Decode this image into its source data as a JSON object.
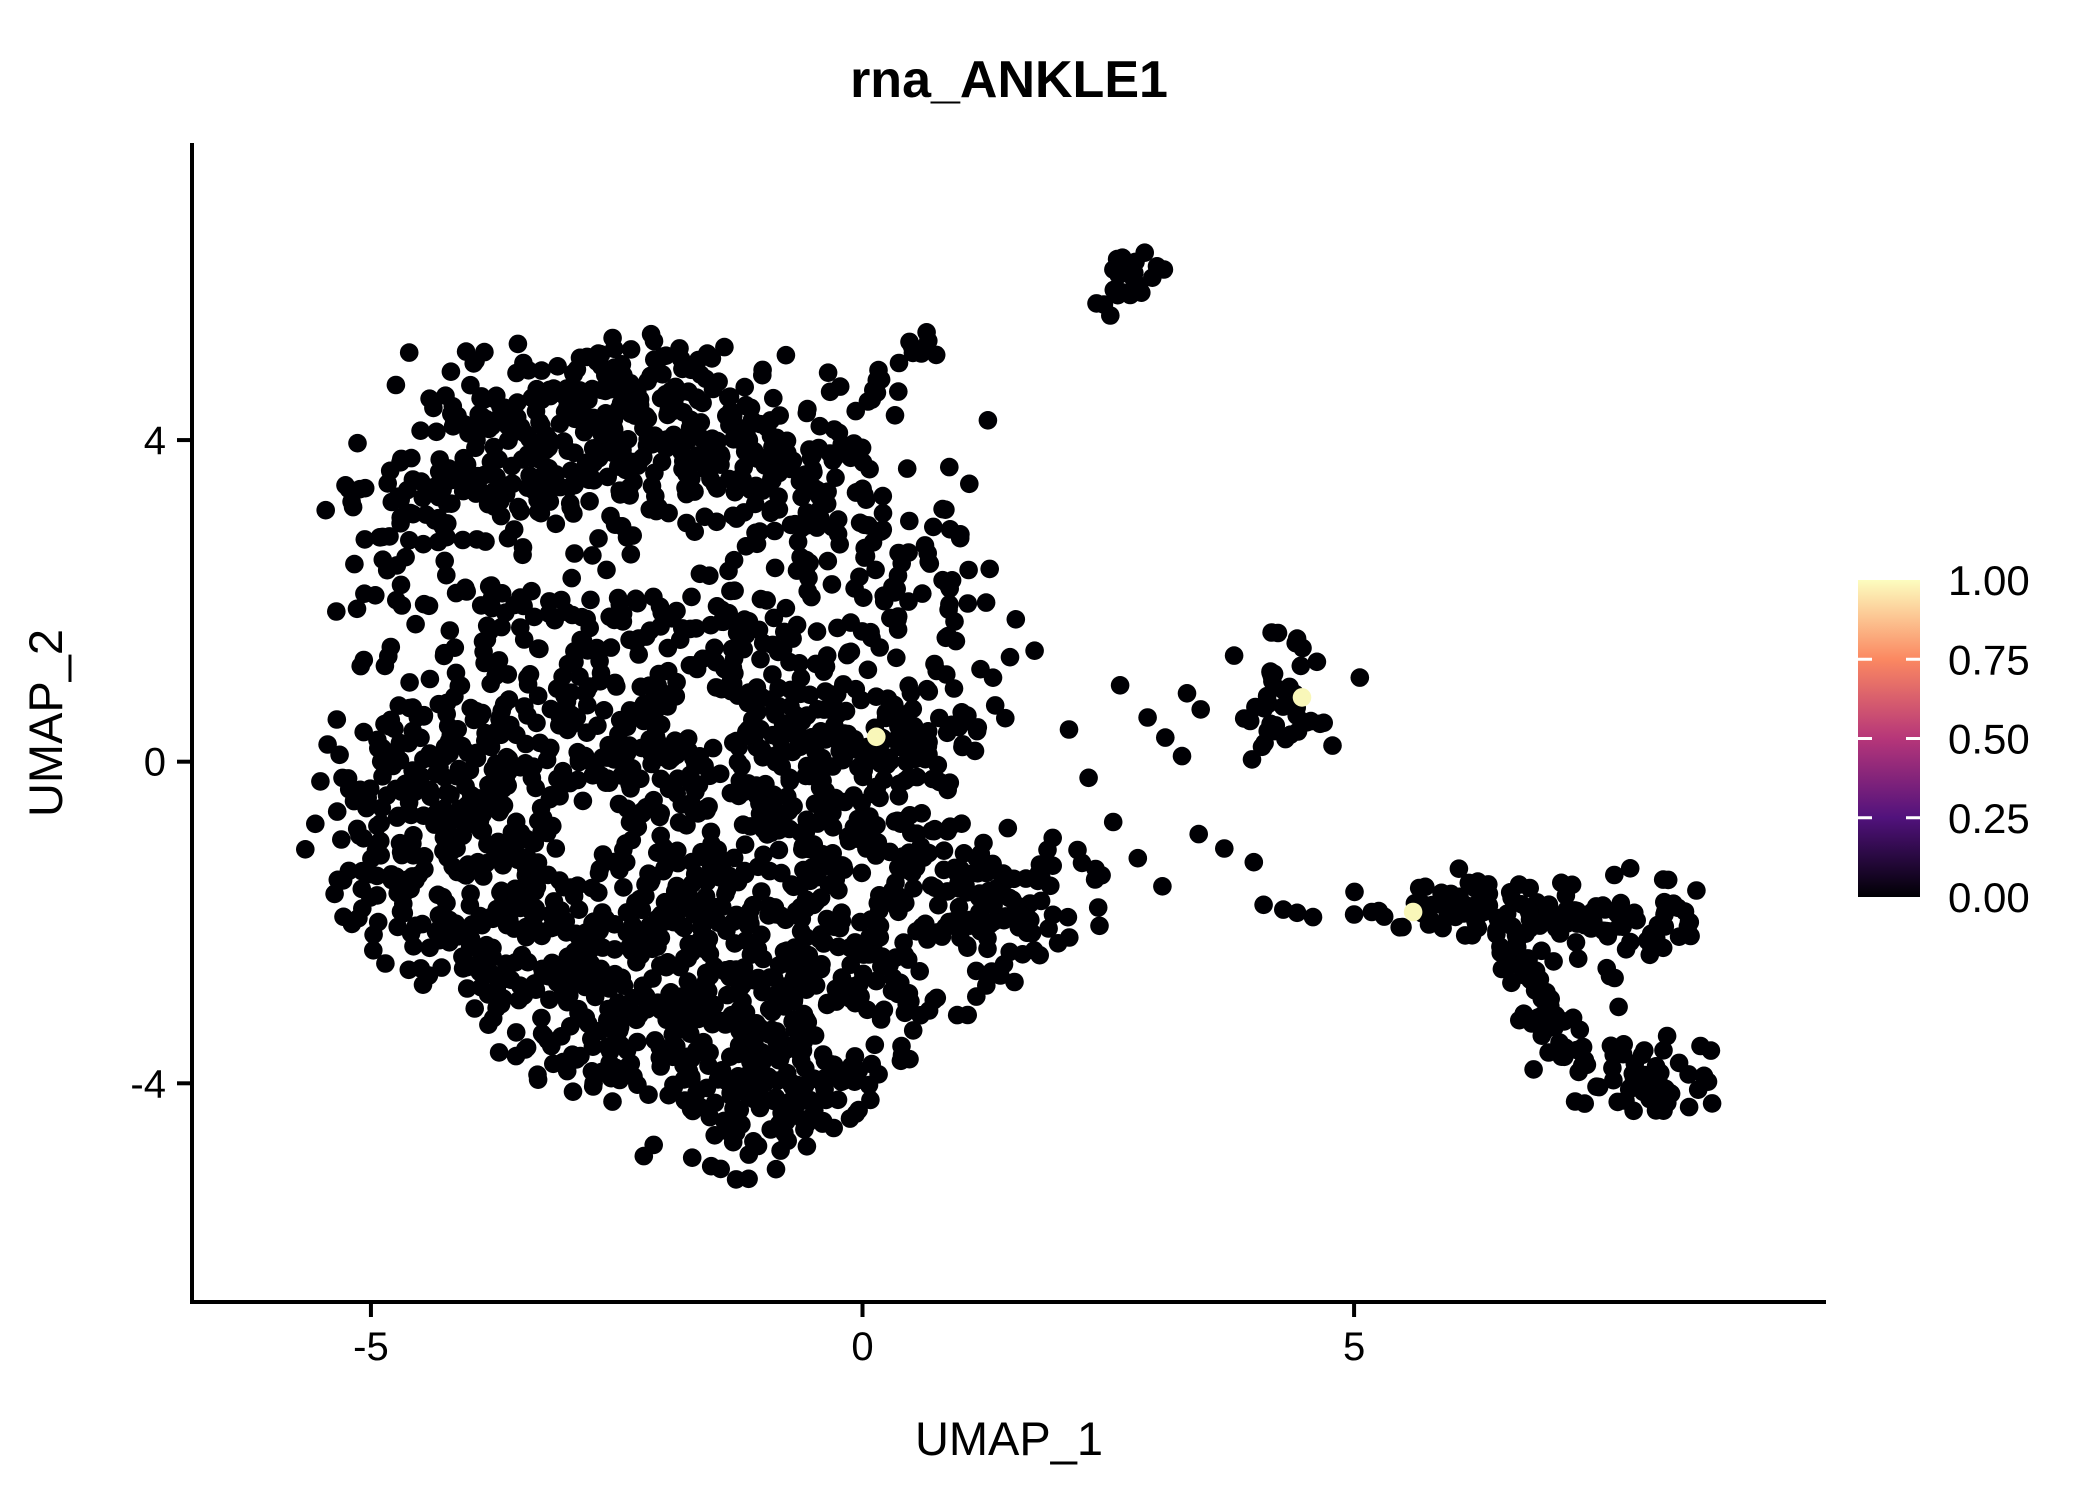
{
  "title": {
    "text": "rna_ANKLE1"
  },
  "axes": {
    "x": {
      "label": "UMAP_1",
      "ticks": [
        "-5",
        "0",
        "5"
      ],
      "tick_values": [
        -5,
        0,
        5
      ]
    },
    "y": {
      "label": "UMAP_2",
      "ticks": [
        "4",
        "0",
        "-4"
      ],
      "tick_values": [
        4,
        0,
        -4
      ]
    }
  },
  "colorbar": {
    "labels": [
      "1.00",
      "0.75",
      "0.50",
      "0.25",
      "0.00"
    ],
    "label_values": [
      1.0,
      0.75,
      0.5,
      0.25,
      0.0
    ],
    "gradient_stops": [
      {
        "value": 0.0,
        "color": "#000004"
      },
      {
        "value": 0.25,
        "color": "#51127C"
      },
      {
        "value": 0.5,
        "color": "#B63679"
      },
      {
        "value": 0.75,
        "color": "#FB8861"
      },
      {
        "value": 1.0,
        "color": "#FCFDBF"
      }
    ]
  },
  "chart_data": {
    "type": "scatter",
    "title": "rna_ANKLE1",
    "xlabel": "UMAP_1",
    "ylabel": "UMAP_2",
    "xlim": [
      -6.82,
      9.8
    ],
    "ylim": [
      -6.72,
      7.67
    ],
    "x_ticks": [
      -5,
      0,
      5
    ],
    "y_ticks": [
      4,
      0,
      -4
    ],
    "grid": false,
    "legend_position": "right",
    "value_range": [
      0.0,
      1.0
    ],
    "point_radius_px": 9.3,
    "color_zero": "#000004",
    "color_one": "#F9F7B9",
    "seed": 42,
    "highlight_points": [
      {
        "x": 0.14,
        "y": 0.31,
        "value": 1.0
      },
      {
        "x": 4.47,
        "y": 0.8,
        "value": 1.0
      },
      {
        "x": 5.6,
        "y": -1.87,
        "value": 1.0
      }
    ],
    "voids": [
      {
        "cx": -1.5,
        "cy": 0.55,
        "r": 0.35
      },
      {
        "cx": -2.85,
        "cy": -0.8,
        "r": 0.3
      },
      {
        "cx": -0.2,
        "cy": -3.3,
        "r": 0.3
      }
    ],
    "clusters": [
      {
        "id": "upper-crest",
        "type": "gauss",
        "cx": -2.4,
        "cy": 4.7,
        "sx": 0.5,
        "sy": 0.3,
        "n": 60,
        "clip": "main"
      },
      {
        "id": "upper-a",
        "type": "gauss",
        "cx": -3.3,
        "cy": 4.0,
        "sx": 0.85,
        "sy": 0.55,
        "n": 200,
        "clip": "main"
      },
      {
        "id": "upper-b",
        "type": "gauss",
        "cx": -1.7,
        "cy": 3.8,
        "sx": 0.75,
        "sy": 0.6,
        "n": 150,
        "clip": "main"
      },
      {
        "id": "upper-right",
        "type": "gauss",
        "cx": -0.35,
        "cy": 3.0,
        "sx": 0.6,
        "sy": 0.75,
        "n": 90,
        "clip": "main"
      },
      {
        "id": "upper-right2",
        "type": "gauss",
        "cx": 0.55,
        "cy": 2.35,
        "sx": 0.45,
        "sy": 0.55,
        "n": 45,
        "clip": "main"
      },
      {
        "id": "upper-leftspur",
        "type": "gauss",
        "cx": -4.55,
        "cy": 3.0,
        "sx": 0.45,
        "sy": 0.5,
        "n": 55,
        "clip": "main"
      },
      {
        "id": "band-left",
        "type": "gauss",
        "cx": -3.8,
        "cy": 1.8,
        "sx": 0.7,
        "sy": 0.38,
        "n": 40,
        "clip": "main"
      },
      {
        "id": "band-mid",
        "type": "gauss",
        "cx": -2.2,
        "cy": 1.75,
        "sx": 0.7,
        "sy": 0.38,
        "n": 35,
        "clip": "main"
      },
      {
        "id": "band-right",
        "type": "gauss",
        "cx": -0.8,
        "cy": 1.55,
        "sx": 0.5,
        "sy": 0.35,
        "n": 30,
        "clip": "main"
      },
      {
        "id": "low-left",
        "type": "gauss",
        "cx": -4.5,
        "cy": -0.1,
        "sx": 0.55,
        "sy": 0.75,
        "n": 110,
        "clip": "main"
      },
      {
        "id": "low-e",
        "type": "gauss",
        "cx": -3.1,
        "cy": 0.15,
        "sx": 0.75,
        "sy": 0.7,
        "n": 150,
        "clip": "main"
      },
      {
        "id": "low-f",
        "type": "gauss",
        "cx": -1.7,
        "cy": 0.35,
        "sx": 0.7,
        "sy": 0.6,
        "n": 130,
        "clip": "main"
      },
      {
        "id": "low-f2",
        "type": "gauss",
        "cx": -0.35,
        "cy": 0.3,
        "sx": 0.55,
        "sy": 0.6,
        "n": 110,
        "clip": "main"
      },
      {
        "id": "low-f3",
        "type": "gauss",
        "cx": 0.6,
        "cy": 0.1,
        "sx": 0.4,
        "sy": 0.5,
        "n": 50,
        "clip": "main"
      },
      {
        "id": "low-g",
        "type": "gauss",
        "cx": -4.35,
        "cy": -1.9,
        "sx": 0.6,
        "sy": 0.8,
        "n": 140,
        "clip": "main"
      },
      {
        "id": "low-h",
        "type": "gauss",
        "cx": -2.7,
        "cy": -1.9,
        "sx": 0.9,
        "sy": 0.85,
        "n": 230,
        "clip": "main"
      },
      {
        "id": "low-i",
        "type": "gauss",
        "cx": -1.0,
        "cy": -1.8,
        "sx": 0.8,
        "sy": 0.85,
        "n": 190,
        "clip": "main"
      },
      {
        "id": "low-j",
        "type": "gauss",
        "cx": 0.45,
        "cy": -1.75,
        "sx": 0.65,
        "sy": 0.7,
        "n": 130,
        "clip": "main"
      },
      {
        "id": "low-k",
        "type": "gauss",
        "cx": 1.55,
        "cy": -1.8,
        "sx": 0.45,
        "sy": 0.5,
        "n": 70,
        "clip": "main"
      },
      {
        "id": "low-l",
        "type": "gauss",
        "cx": -2.1,
        "cy": -3.5,
        "sx": 0.9,
        "sy": 0.6,
        "n": 150,
        "clip": "main"
      },
      {
        "id": "low-l2",
        "type": "gauss",
        "cx": -0.7,
        "cy": -3.3,
        "sx": 0.7,
        "sy": 0.6,
        "n": 110,
        "clip": "main"
      },
      {
        "id": "low-tip",
        "type": "gauss",
        "cx": -0.9,
        "cy": -4.35,
        "sx": 0.5,
        "sy": 0.35,
        "n": 60,
        "clip": "main"
      },
      {
        "id": "arm",
        "type": "line",
        "x1": 0.0,
        "y1": 4.42,
        "x2": 0.65,
        "y2": 5.25,
        "jitter": 0.09,
        "n": 16
      },
      {
        "id": "arm-singles",
        "type": "points",
        "pts": [
          [
            -0.33,
            4.6
          ],
          [
            -0.24,
            4.09
          ],
          [
            -0.12,
            3.78
          ],
          [
            -0.5,
            3.6
          ],
          [
            0.75,
            5.06
          ]
        ]
      },
      {
        "id": "top-cluster",
        "type": "gauss",
        "cx": 2.7,
        "cy": 6.0,
        "sx": 0.17,
        "sy": 0.2,
        "n": 20
      },
      {
        "id": "top-cluster-singles",
        "type": "points",
        "pts": [
          [
            2.38,
            5.7
          ],
          [
            2.52,
            5.55
          ]
        ]
      },
      {
        "id": "scatter-misc",
        "type": "points",
        "pts": [
          [
            0.95,
            1.5
          ],
          [
            1.2,
            1.15
          ],
          [
            1.5,
            1.3
          ],
          [
            1.75,
            1.38
          ],
          [
            1.35,
            0.7
          ],
          [
            2.1,
            0.4
          ],
          [
            2.3,
            -0.2
          ],
          [
            2.55,
            -0.75
          ],
          [
            2.8,
            -1.2
          ],
          [
            3.05,
            -1.55
          ]
        ]
      },
      {
        "id": "trail-midright",
        "type": "points",
        "pts": [
          [
            2.62,
            0.95
          ],
          [
            2.9,
            0.55
          ],
          [
            3.08,
            0.3
          ],
          [
            3.25,
            0.07
          ],
          [
            3.3,
            0.85
          ],
          [
            3.44,
            0.65
          ],
          [
            3.78,
            1.32
          ],
          [
            4.15,
            1.12
          ],
          [
            4.78,
            0.2
          ]
        ]
      },
      {
        "id": "mid-right",
        "type": "gauss",
        "cx": 4.3,
        "cy": 0.78,
        "sx": 0.27,
        "sy": 0.34,
        "n": 40
      },
      {
        "id": "bridge-right",
        "type": "points",
        "pts": [
          [
            3.42,
            -0.9
          ],
          [
            3.68,
            -1.08
          ],
          [
            3.98,
            -1.25
          ],
          [
            4.08,
            -1.78
          ],
          [
            4.28,
            -1.84
          ],
          [
            4.42,
            -1.88
          ],
          [
            5.0,
            -1.9
          ],
          [
            5.18,
            -1.87
          ],
          [
            5.78,
            -1.97
          ],
          [
            5.9,
            -2.07
          ],
          [
            6.03,
            -1.93
          ]
        ]
      },
      {
        "id": "right-band",
        "type": "gauss",
        "cx": 6.15,
        "cy": -1.85,
        "sx": 0.5,
        "sy": 0.2,
        "n": 55,
        "clip": "right"
      },
      {
        "id": "right-band2",
        "type": "gauss",
        "cx": 6.9,
        "cy": -1.95,
        "sx": 0.3,
        "sy": 0.22,
        "n": 30,
        "clip": "right"
      },
      {
        "id": "right-blob",
        "type": "gauss",
        "cx": 7.9,
        "cy": -2.0,
        "sx": 0.35,
        "sy": 0.25,
        "n": 50,
        "clip": "right"
      },
      {
        "id": "right-diag",
        "type": "line",
        "x1": 6.6,
        "y1": -2.2,
        "x2": 7.3,
        "y2": -3.85,
        "jitter": 0.16,
        "n": 50,
        "clip": "right"
      },
      {
        "id": "right-hook",
        "type": "gauss",
        "cx": 8.0,
        "cy": -3.9,
        "sx": 0.42,
        "sy": 0.25,
        "n": 50,
        "clip": "right"
      },
      {
        "id": "right-sparse",
        "type": "points",
        "pts": [
          [
            6.85,
            -2.6
          ],
          [
            7.0,
            -2.95
          ],
          [
            6.6,
            -2.75
          ],
          [
            7.28,
            -2.45
          ],
          [
            7.65,
            -2.69
          ],
          [
            7.69,
            -3.05
          ],
          [
            8.5,
            -4.08
          ],
          [
            8.6,
            -3.98
          ]
        ]
      }
    ]
  }
}
